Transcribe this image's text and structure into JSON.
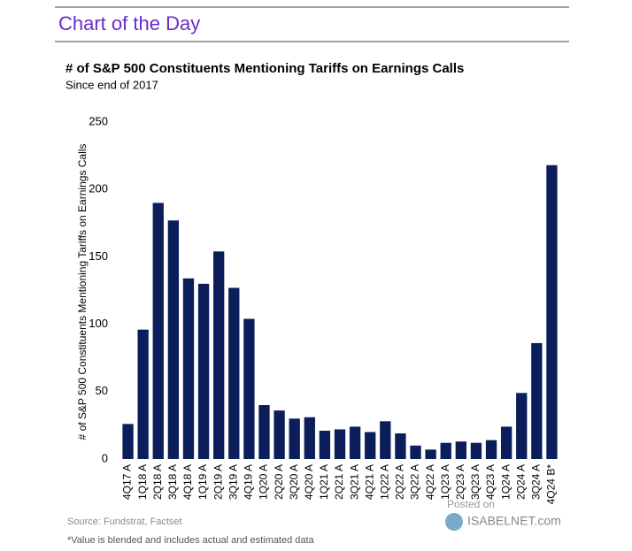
{
  "header": {
    "title": "Chart of the Day"
  },
  "chart_data": {
    "type": "bar",
    "title": "# of S&P 500 Constituents Mentioning Tariffs on Earnings Calls",
    "subtitle": "Since end of 2017",
    "ylabel": "# of S&P 500 Constituents Mentioning Tariffs on Earnings Calls",
    "categories": [
      "4Q17 A",
      "1Q18 A",
      "2Q18 A",
      "3Q18 A",
      "4Q18 A",
      "1Q19 A",
      "2Q19 A",
      "3Q19 A",
      "4Q19 A",
      "1Q20 A",
      "2Q20 A",
      "3Q20 A",
      "4Q20 A",
      "1Q21 A",
      "2Q21 A",
      "3Q21 A",
      "4Q21 A",
      "1Q22 A",
      "2Q22 A",
      "3Q22 A",
      "4Q22 A",
      "1Q23 A",
      "2Q23 A",
      "3Q23 A",
      "4Q23 A",
      "1Q24 A",
      "2Q24 A",
      "3Q24 A",
      "4Q24 B*"
    ],
    "values": [
      26,
      96,
      190,
      177,
      134,
      130,
      154,
      127,
      104,
      40,
      36,
      30,
      31,
      21,
      22,
      24,
      20,
      28,
      19,
      10,
      7,
      12,
      13,
      12,
      14,
      24,
      49,
      86,
      218
    ],
    "color": "#0b1d5a",
    "ylim": [
      0,
      250
    ],
    "yticks": [
      0,
      50,
      100,
      150,
      200,
      250
    ],
    "grid": false,
    "source": "Source: Fundstrat, Factset",
    "footnote": "*Value is blended and includes actual and estimated data",
    "watermark": [
      "Posted on",
      "ISABELNET.com"
    ]
  }
}
